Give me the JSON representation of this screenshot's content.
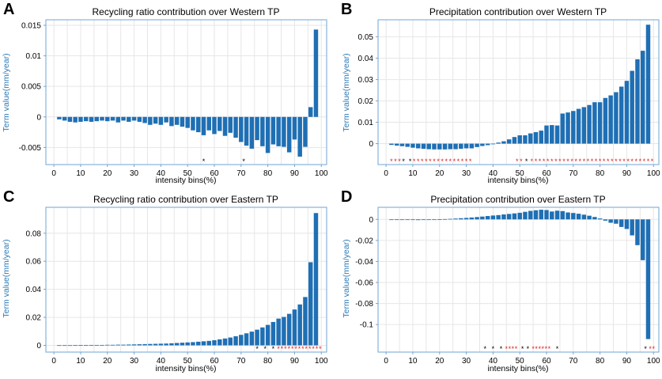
{
  "chart_data": [
    {
      "panel": "A",
      "type": "bar",
      "title": "Recycling ratio contribution over Western TP",
      "xlabel": "intensity bins(%)",
      "ylabel": "Term value(mm/year)",
      "xlim": [
        -3,
        102
      ],
      "ylim": [
        -0.0078,
        0.0159
      ],
      "x_ticks": [
        0,
        10,
        20,
        30,
        40,
        50,
        60,
        70,
        80,
        90,
        100
      ],
      "y_ticks": [
        -0.005,
        0,
        0.005,
        0.01,
        0.015
      ],
      "y_tick_labels": [
        "-0.005",
        "0",
        "0.005",
        "0.01",
        "0.015"
      ],
      "x": [
        2,
        4,
        6,
        8,
        10,
        12,
        14,
        16,
        18,
        20,
        22,
        24,
        26,
        28,
        30,
        32,
        34,
        36,
        38,
        40,
        42,
        44,
        46,
        48,
        50,
        52,
        54,
        56,
        58,
        60,
        62,
        64,
        66,
        68,
        70,
        72,
        74,
        76,
        78,
        80,
        82,
        84,
        86,
        88,
        90,
        92,
        94,
        96,
        98
      ],
      "values": [
        -0.0004,
        -0.0006,
        -0.0008,
        -0.0009,
        -0.0008,
        -0.0007,
        -0.0008,
        -0.0007,
        -0.0006,
        -0.0007,
        -0.0006,
        -0.0009,
        -0.0006,
        -0.0008,
        -0.0006,
        -0.0008,
        -0.001,
        -0.0013,
        -0.0011,
        -0.0013,
        -0.0009,
        -0.0015,
        -0.0013,
        -0.0016,
        -0.0018,
        -0.0022,
        -0.0025,
        -0.003,
        -0.0022,
        -0.0028,
        -0.0023,
        -0.0031,
        -0.0026,
        -0.0034,
        -0.0041,
        -0.0047,
        -0.0052,
        -0.0038,
        -0.0048,
        -0.0059,
        -0.0045,
        -0.0048,
        -0.0049,
        -0.0058,
        -0.0037,
        -0.0065,
        -0.0049,
        0.0016,
        0.0143
      ],
      "significance": [
        {
          "x": 56,
          "color": "black"
        },
        {
          "x": 71,
          "color": "black"
        }
      ]
    },
    {
      "panel": "B",
      "type": "bar",
      "title": "Precipitation contribution over Western TP",
      "xlabel": "intensity bins(%)",
      "ylabel": "Term value(mm/year)",
      "xlim": [
        -3,
        102
      ],
      "ylim": [
        -0.0098,
        0.058
      ],
      "x_ticks": [
        0,
        10,
        20,
        30,
        40,
        50,
        60,
        70,
        80,
        90,
        100
      ],
      "y_ticks": [
        0,
        0.01,
        0.02,
        0.03,
        0.04,
        0.05
      ],
      "y_tick_labels": [
        "0",
        "0.01",
        "0.02",
        "0.03",
        "0.04",
        "0.05"
      ],
      "x": [
        2,
        4,
        6,
        8,
        10,
        12,
        14,
        16,
        18,
        20,
        22,
        24,
        26,
        28,
        30,
        32,
        34,
        36,
        38,
        40,
        42,
        44,
        46,
        48,
        50,
        52,
        54,
        56,
        58,
        60,
        62,
        64,
        66,
        68,
        70,
        72,
        74,
        76,
        78,
        80,
        82,
        84,
        86,
        88,
        90,
        92,
        94,
        96,
        98
      ],
      "values": [
        -0.0006,
        -0.0009,
        -0.0012,
        -0.0015,
        -0.0019,
        -0.0022,
        -0.0024,
        -0.0026,
        -0.0027,
        -0.0027,
        -0.0027,
        -0.0026,
        -0.0026,
        -0.0024,
        -0.0022,
        -0.0022,
        -0.0016,
        -0.0011,
        -0.0007,
        -0.0002,
        0.0005,
        0.0011,
        0.002,
        0.0031,
        0.0039,
        0.0039,
        0.0048,
        0.0054,
        0.0061,
        0.0085,
        0.0087,
        0.0085,
        0.0141,
        0.0146,
        0.0153,
        0.0163,
        0.0171,
        0.0181,
        0.0194,
        0.0194,
        0.0214,
        0.0226,
        0.0241,
        0.0267,
        0.0294,
        0.0341,
        0.0395,
        0.0435,
        0.0557
      ],
      "significance": [
        {
          "x": 2,
          "color": "red"
        },
        {
          "x": 3.5,
          "color": "red"
        },
        {
          "x": 5,
          "color": "red"
        },
        {
          "x": 6.5,
          "color": "black"
        },
        {
          "x": 9,
          "color": "black"
        },
        {
          "x": 10.5,
          "color": "red"
        },
        {
          "x": 12,
          "color": "red"
        },
        {
          "x": 13.5,
          "color": "red"
        },
        {
          "x": 15,
          "color": "red"
        },
        {
          "x": 16.5,
          "color": "red"
        },
        {
          "x": 18,
          "color": "red"
        },
        {
          "x": 19.5,
          "color": "red"
        },
        {
          "x": 21,
          "color": "red"
        },
        {
          "x": 22.5,
          "color": "red"
        },
        {
          "x": 24,
          "color": "red"
        },
        {
          "x": 25.5,
          "color": "red"
        },
        {
          "x": 27,
          "color": "red"
        },
        {
          "x": 28.5,
          "color": "red"
        },
        {
          "x": 30,
          "color": "red"
        },
        {
          "x": 31.5,
          "color": "red"
        },
        {
          "x": 49,
          "color": "red"
        },
        {
          "x": 50.5,
          "color": "red"
        },
        {
          "x": 52.5,
          "color": "black"
        },
        {
          "x": 54.5,
          "color": "red"
        },
        {
          "x": 56,
          "color": "red"
        },
        {
          "x": 57.5,
          "color": "red"
        },
        {
          "x": 59,
          "color": "red"
        },
        {
          "x": 60.5,
          "color": "red"
        },
        {
          "x": 62,
          "color": "red"
        },
        {
          "x": 63.5,
          "color": "red"
        },
        {
          "x": 65,
          "color": "red"
        },
        {
          "x": 66.5,
          "color": "red"
        },
        {
          "x": 68,
          "color": "red"
        },
        {
          "x": 69.5,
          "color": "red"
        },
        {
          "x": 71,
          "color": "red"
        },
        {
          "x": 72.5,
          "color": "red"
        },
        {
          "x": 74,
          "color": "red"
        },
        {
          "x": 75.5,
          "color": "red"
        },
        {
          "x": 77,
          "color": "red"
        },
        {
          "x": 78.5,
          "color": "red"
        },
        {
          "x": 80,
          "color": "red"
        },
        {
          "x": 81.5,
          "color": "red"
        },
        {
          "x": 83,
          "color": "red"
        },
        {
          "x": 84.5,
          "color": "red"
        },
        {
          "x": 86,
          "color": "red"
        },
        {
          "x": 87.5,
          "color": "red"
        },
        {
          "x": 89,
          "color": "red"
        },
        {
          "x": 90.5,
          "color": "red"
        },
        {
          "x": 92,
          "color": "red"
        },
        {
          "x": 93.5,
          "color": "red"
        },
        {
          "x": 95,
          "color": "red"
        },
        {
          "x": 96.5,
          "color": "red"
        },
        {
          "x": 98,
          "color": "red"
        },
        {
          "x": 99.5,
          "color": "red"
        }
      ]
    },
    {
      "panel": "C",
      "type": "bar",
      "title": "Recycling ratio contribution over Eastern TP",
      "xlabel": "intensity bins(%)",
      "ylabel": "Term value(mm/year)",
      "xlim": [
        -3,
        102
      ],
      "ylim": [
        -0.0048,
        0.0985
      ],
      "x_ticks": [
        0,
        10,
        20,
        30,
        40,
        50,
        60,
        70,
        80,
        90,
        100
      ],
      "y_ticks": [
        0,
        0.02,
        0.04,
        0.06,
        0.08
      ],
      "y_tick_labels": [
        "0",
        "0.02",
        "0.04",
        "0.06",
        "0.08"
      ],
      "x": [
        2,
        4,
        6,
        8,
        10,
        12,
        14,
        16,
        18,
        20,
        22,
        24,
        26,
        28,
        30,
        32,
        34,
        36,
        38,
        40,
        42,
        44,
        46,
        48,
        50,
        52,
        54,
        56,
        58,
        60,
        62,
        64,
        66,
        68,
        70,
        72,
        74,
        76,
        78,
        80,
        82,
        84,
        86,
        88,
        90,
        92,
        94,
        96,
        98
      ],
      "values": [
        0.0001,
        0.0001,
        0.0001,
        0.0002,
        0.0002,
        0.0002,
        0.0003,
        0.0003,
        0.0003,
        0.0004,
        0.0004,
        0.0005,
        0.0005,
        0.0006,
        0.0007,
        0.0008,
        0.0009,
        0.001,
        0.0011,
        0.0012,
        0.0013,
        0.0015,
        0.0017,
        0.0019,
        0.0021,
        0.0023,
        0.0026,
        0.0029,
        0.0032,
        0.0037,
        0.0043,
        0.0049,
        0.0056,
        0.0065,
        0.0075,
        0.0086,
        0.0098,
        0.0112,
        0.0128,
        0.0146,
        0.0167,
        0.0191,
        0.0203,
        0.0225,
        0.0256,
        0.0292,
        0.0345,
        0.0593,
        0.0944
      ],
      "significance": [
        {
          "x": 76,
          "color": "black"
        },
        {
          "x": 79,
          "color": "black"
        },
        {
          "x": 82,
          "color": "black"
        },
        {
          "x": 84,
          "color": "red"
        },
        {
          "x": 85.3,
          "color": "red"
        },
        {
          "x": 86.6,
          "color": "red"
        },
        {
          "x": 87.9,
          "color": "red"
        },
        {
          "x": 89.2,
          "color": "red"
        },
        {
          "x": 90.5,
          "color": "red"
        },
        {
          "x": 91.8,
          "color": "red"
        },
        {
          "x": 93.1,
          "color": "red"
        },
        {
          "x": 94.4,
          "color": "red"
        },
        {
          "x": 95.7,
          "color": "red"
        },
        {
          "x": 97,
          "color": "red"
        },
        {
          "x": 98.3,
          "color": "red"
        },
        {
          "x": 99.6,
          "color": "red"
        }
      ]
    },
    {
      "panel": "D",
      "type": "bar",
      "title": "Precipitation contribution over Eastern TP",
      "xlabel": "intensity bins(%)",
      "ylabel": "Term value(mm/year)",
      "xlim": [
        -3,
        102
      ],
      "ylim": [
        -0.1262,
        0.0115
      ],
      "x_ticks": [
        0,
        10,
        20,
        30,
        40,
        50,
        60,
        70,
        80,
        90,
        100
      ],
      "y_ticks": [
        -0.1,
        -0.08,
        -0.06,
        -0.04,
        -0.02,
        0
      ],
      "y_tick_labels": [
        "-0.1",
        "-0.08",
        "-0.06",
        "-0.04",
        "-0.02",
        "0"
      ],
      "x": [
        2,
        4,
        6,
        8,
        10,
        12,
        14,
        16,
        18,
        20,
        22,
        24,
        26,
        28,
        30,
        32,
        34,
        36,
        38,
        40,
        42,
        44,
        46,
        48,
        50,
        52,
        54,
        56,
        58,
        60,
        62,
        64,
        66,
        68,
        70,
        72,
        74,
        76,
        78,
        80,
        82,
        84,
        86,
        88,
        90,
        92,
        94,
        96,
        98
      ],
      "values": [
        -0.0002,
        -0.0003,
        -0.0004,
        -0.0005,
        -0.0006,
        -0.0007,
        -0.0005,
        -0.0003,
        -0.0001,
        0.0001,
        0.0003,
        0.0005,
        0.0008,
        0.0011,
        0.0014,
        0.0018,
        0.0022,
        0.0027,
        0.0032,
        0.0037,
        0.0041,
        0.0047,
        0.0052,
        0.0057,
        0.0063,
        0.0072,
        0.0081,
        0.0087,
        0.0092,
        0.0089,
        0.0075,
        0.0083,
        0.0079,
        0.0066,
        0.0061,
        0.0054,
        0.0045,
        0.0035,
        0.0023,
        0.0009,
        -0.0012,
        -0.0032,
        -0.0041,
        -0.0072,
        -0.0091,
        -0.0152,
        -0.0245,
        -0.0388,
        -0.1138
      ],
      "significance": [
        {
          "x": 37,
          "color": "black"
        },
        {
          "x": 40,
          "color": "black"
        },
        {
          "x": 43,
          "color": "black"
        },
        {
          "x": 45,
          "color": "red"
        },
        {
          "x": 46.2,
          "color": "red"
        },
        {
          "x": 47.4,
          "color": "red"
        },
        {
          "x": 48.6,
          "color": "red"
        },
        {
          "x": 51,
          "color": "black"
        },
        {
          "x": 53,
          "color": "black"
        },
        {
          "x": 55,
          "color": "red"
        },
        {
          "x": 56.2,
          "color": "red"
        },
        {
          "x": 57.4,
          "color": "red"
        },
        {
          "x": 58.6,
          "color": "red"
        },
        {
          "x": 59.8,
          "color": "red"
        },
        {
          "x": 61,
          "color": "red"
        },
        {
          "x": 64,
          "color": "black"
        },
        {
          "x": 97,
          "color": "black"
        },
        {
          "x": 98.8,
          "color": "red"
        },
        {
          "x": 100,
          "color": "red"
        }
      ]
    }
  ],
  "colors": {
    "bar": "#1f6fb4",
    "frame": "#6fa6d6",
    "grid": "#e6e6e6",
    "significant_red": "#e0201b",
    "significant_black": "#000000"
  }
}
